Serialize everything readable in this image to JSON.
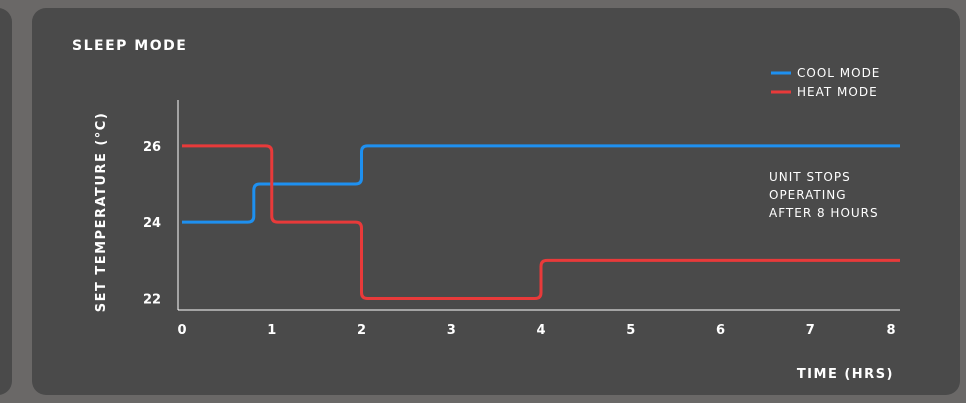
{
  "chart_data": {
    "type": "line",
    "title": "SLEEP MODE",
    "xlabel": "TIME (HRS)",
    "ylabel": "SET TEMPERATURE (°C)",
    "xlim": [
      0,
      8
    ],
    "ylim": [
      21.7,
      27.2
    ],
    "x_ticks": [
      "0",
      "1",
      "2",
      "3",
      "4",
      "5",
      "6",
      "7",
      "8"
    ],
    "y_ticks": [
      "22",
      "24",
      "26"
    ],
    "legend_position": "top-right",
    "grid": false,
    "series": [
      {
        "name": "COOL MODE",
        "color": "#1e90f0",
        "step_points": [
          [
            0,
            24
          ],
          [
            0.8,
            24
          ],
          [
            0.8,
            25
          ],
          [
            2,
            25
          ],
          [
            2,
            26
          ],
          [
            8,
            26
          ]
        ]
      },
      {
        "name": "HEAT MODE",
        "color": "#e83a3a",
        "step_points": [
          [
            0,
            26
          ],
          [
            1,
            26
          ],
          [
            1,
            24
          ],
          [
            2,
            24
          ],
          [
            2,
            22
          ],
          [
            4,
            22
          ],
          [
            4,
            23
          ],
          [
            8,
            23
          ]
        ]
      }
    ],
    "annotation": [
      "UNIT STOPS",
      "OPERATING",
      "AFTER 8 HOURS"
    ]
  }
}
